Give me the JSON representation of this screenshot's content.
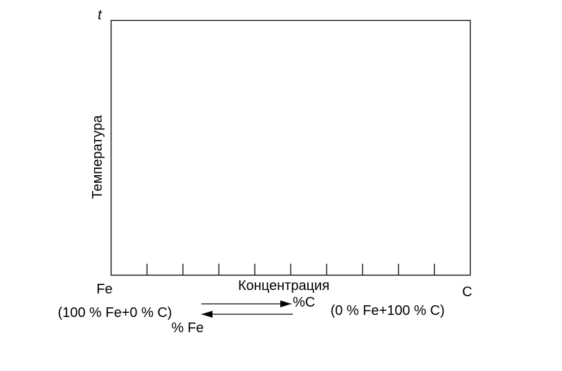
{
  "axis": {
    "y_symbol": "t",
    "y_label": "Температура",
    "x_label": "Концентрация",
    "left_end": "Fe",
    "right_end": "C"
  },
  "arrows": {
    "right": "%C",
    "left": "% Fe"
  },
  "compositions": {
    "left": "(100 % Fe+0 % C)",
    "right": "(0 % Fe+100 % C)"
  }
}
